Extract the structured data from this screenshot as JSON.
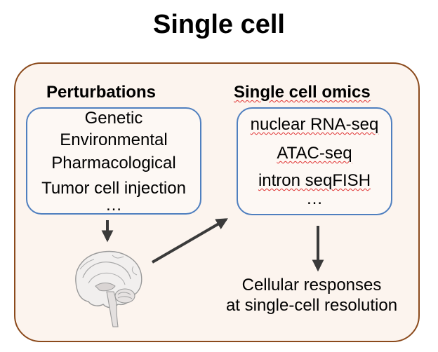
{
  "title": "Single cell",
  "perturbations": {
    "heading": "Perturbations",
    "items": [
      "Genetic",
      "Environmental",
      "Pharmacological",
      "Tumor cell injection",
      "…"
    ]
  },
  "omics": {
    "heading": "Single cell omics",
    "items": [
      "nuclear RNA-seq",
      "ATAC-seq",
      "intron seqFISH",
      "…"
    ]
  },
  "outcome": {
    "line1": "Cellular responses",
    "line2": "at single-cell resolution"
  },
  "icons": {
    "brain": "brain-icon"
  },
  "colors": {
    "outer_border": "#8b4a1c",
    "outer_fill": "#fcf4ee",
    "box_border": "#4f7fbf",
    "arrow": "#3a3a3a",
    "spellcheck_underline": "#e03030"
  }
}
